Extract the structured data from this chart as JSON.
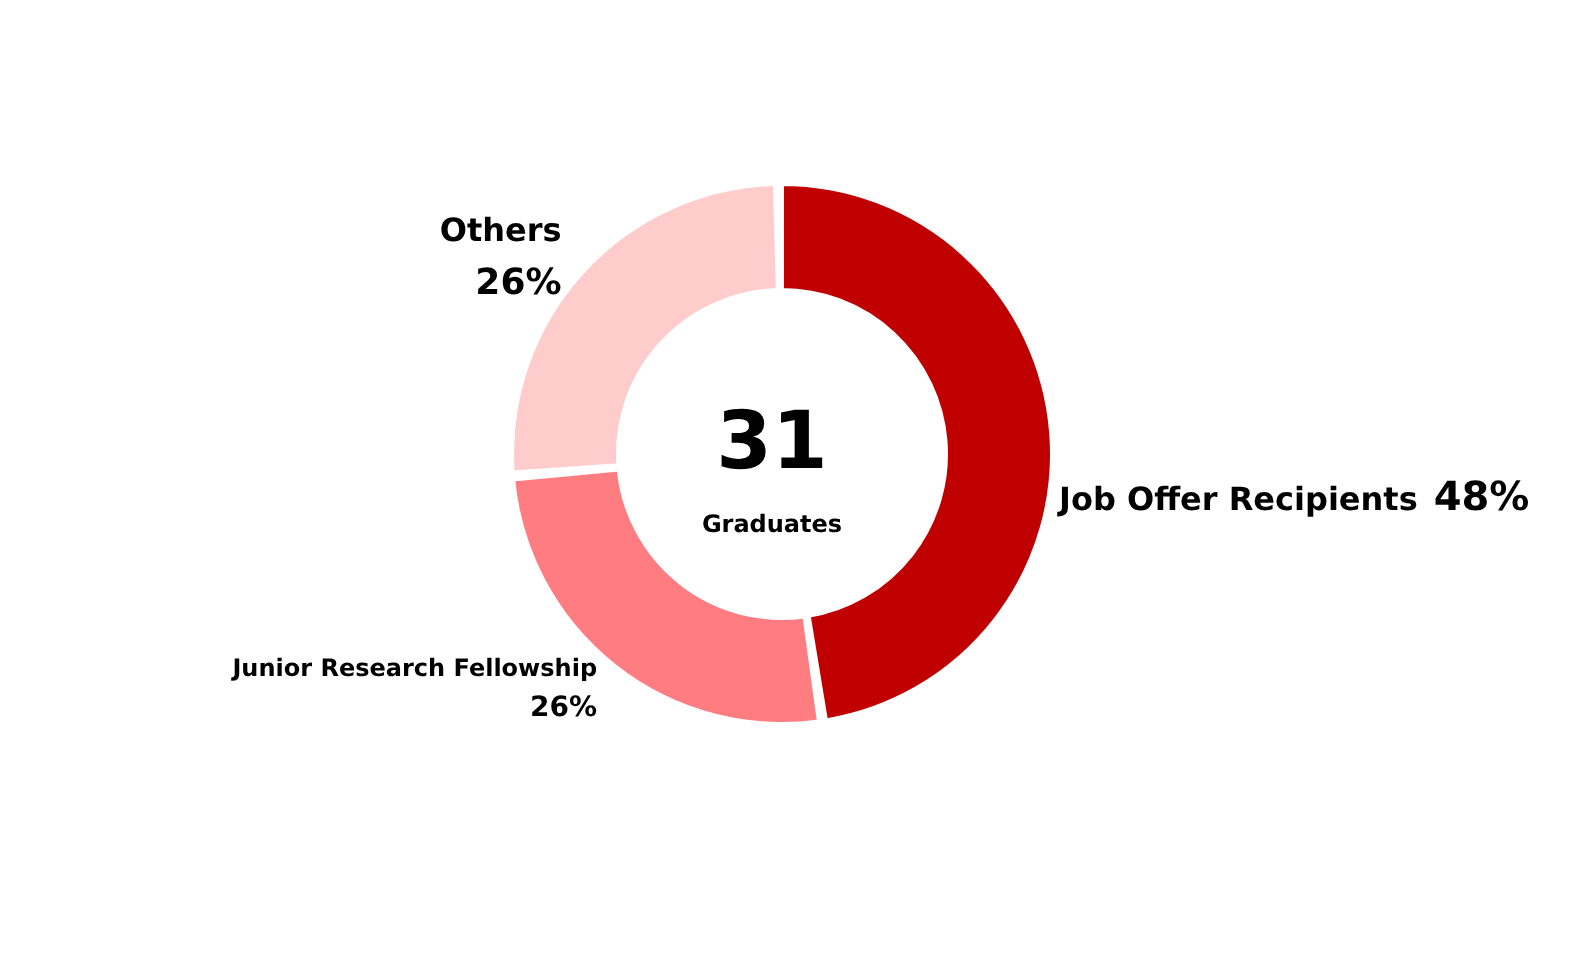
{
  "chart_data": {
    "type": "donut",
    "categories": [
      "Job Offer Recipients",
      "Junior Research Fellowship",
      "Others"
    ],
    "values": [
      48,
      26,
      26
    ],
    "value_labels": [
      "48%",
      "26%",
      "26%"
    ],
    "colors": [
      "#c00000",
      "#ff7c80",
      "#ffcccc"
    ],
    "annotations": [
      "31",
      "Graduates"
    ],
    "legend": false
  }
}
